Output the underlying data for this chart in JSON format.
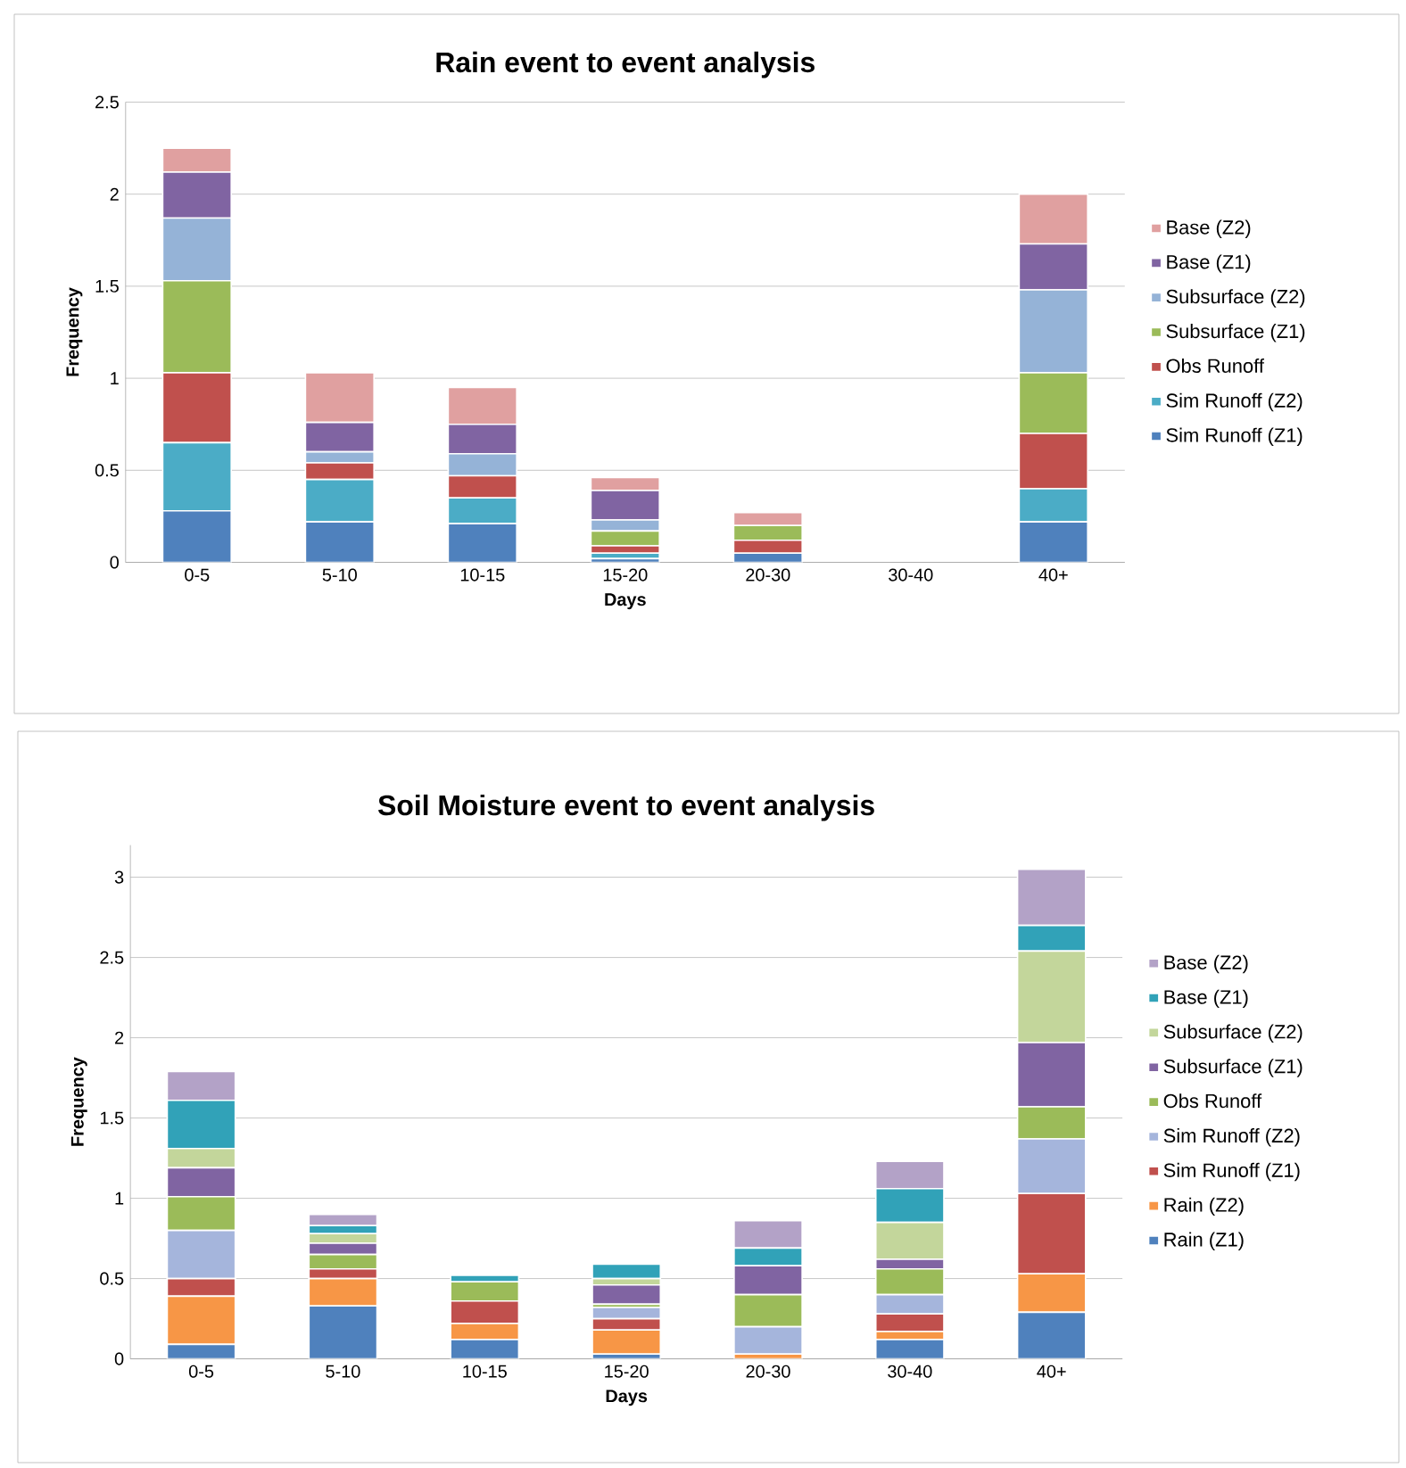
{
  "chart_data": [
    {
      "type": "bar",
      "stacked": true,
      "title": "Rain event to event analysis",
      "xlabel": "Days",
      "ylabel": "Frequency",
      "categories": [
        "0-5",
        "5-10",
        "10-15",
        "15-20",
        "20-30",
        "30-40",
        "40+"
      ],
      "ylim": [
        0,
        2.5
      ],
      "yticks": [
        0,
        0.5,
        1,
        1.5,
        2,
        2.5
      ],
      "grid": "y",
      "legend": "right",
      "series": [
        {
          "name": "Sim Runoff (Z1)",
          "color": "#4f81bd",
          "values": [
            0.28,
            0.22,
            0.21,
            0.02,
            0.05,
            0,
            0.22
          ]
        },
        {
          "name": "Sim Runoff (Z2)",
          "color": "#4bacc6",
          "values": [
            0.37,
            0.23,
            0.14,
            0.03,
            null,
            0,
            0.18
          ]
        },
        {
          "name": "Obs Runoff",
          "color": "#c0504d",
          "values": [
            0.38,
            0.09,
            0.12,
            0.04,
            0.07,
            0,
            0.3
          ]
        },
        {
          "name": "Subsurface (Z1)",
          "color": "#9bbb59",
          "values": [
            0.5,
            0,
            0,
            0.08,
            0.08,
            0,
            0.33
          ]
        },
        {
          "name": "Subsurface (Z2)",
          "color": "#95b3d7",
          "values": [
            0.34,
            0.06,
            0.12,
            0.06,
            0,
            0,
            0.45
          ]
        },
        {
          "name": "Base (Z1)",
          "color": "#8064a2",
          "values": [
            0.25,
            0.16,
            0.16,
            0.16,
            0,
            0,
            0.25
          ]
        },
        {
          "name": "Base (Z2)",
          "color": "#e0a0a0",
          "values": [
            0.13,
            0.27,
            0.2,
            0.07,
            0.07,
            0,
            0.27
          ]
        }
      ]
    },
    {
      "type": "bar",
      "stacked": true,
      "title": "Soil Moisture event to event analysis",
      "xlabel": "Days",
      "ylabel": "Frequency",
      "categories": [
        "0-5",
        "5-10",
        "10-15",
        "15-20",
        "20-30",
        "30-40",
        "40+"
      ],
      "ylim": [
        0,
        3.2
      ],
      "yticks": [
        0,
        0.5,
        1,
        1.5,
        2,
        2.5,
        3
      ],
      "grid": "y",
      "legend": "right",
      "series": [
        {
          "name": "Rain (Z1)",
          "color": "#4f81bd",
          "values": [
            0.09,
            0.33,
            0.12,
            0.03,
            null,
            0.12,
            0.29
          ]
        },
        {
          "name": "Rain (Z2)",
          "color": "#f79646",
          "values": [
            0.3,
            0.17,
            0.1,
            0.15,
            0.03,
            0.05,
            0.24
          ]
        },
        {
          "name": "Sim Runoff (Z1)",
          "color": "#c0504d",
          "values": [
            0.11,
            0.06,
            0.14,
            0.07,
            0,
            0.11,
            0.5
          ]
        },
        {
          "name": "Sim Runoff (Z2)",
          "color": "#a5b5dc",
          "values": [
            0.3,
            0,
            0,
            0.07,
            0.17,
            0.12,
            0.34
          ]
        },
        {
          "name": "Obs Runoff",
          "color": "#9bbb59",
          "values": [
            0.21,
            0.09,
            0.12,
            0.02,
            0.2,
            0.16,
            0.2
          ]
        },
        {
          "name": "Subsurface (Z1)",
          "color": "#8064a2",
          "values": [
            0.18,
            0.07,
            0,
            0.12,
            0.18,
            0.06,
            0.4
          ]
        },
        {
          "name": "Subsurface (Z2)",
          "color": "#c3d69b",
          "values": [
            0.12,
            0.06,
            0,
            0.04,
            0,
            0.23,
            0.57
          ]
        },
        {
          "name": "Base (Z1)",
          "color": "#31a2b8",
          "values": [
            0.3,
            0.05,
            0.04,
            0.09,
            0.11,
            0.21,
            0.16
          ]
        },
        {
          "name": "Base (Z2)",
          "color": "#b3a2c7",
          "values": [
            0.18,
            0.07,
            0,
            0,
            0.17,
            0.17,
            0.35
          ]
        }
      ]
    }
  ]
}
